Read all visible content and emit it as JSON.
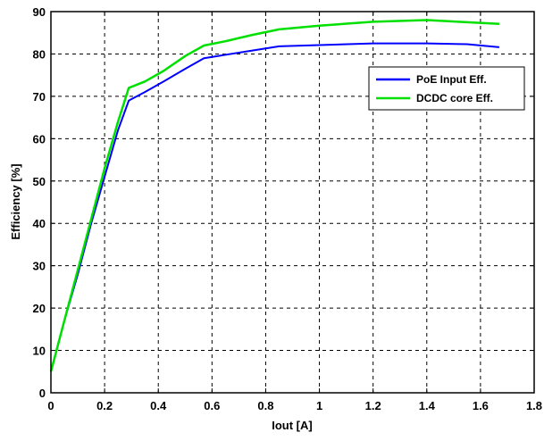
{
  "chart_data": {
    "type": "line",
    "xlabel": "Iout [A]",
    "ylabel": "Efficiency [%]",
    "xlim": [
      0,
      1.8
    ],
    "ylim": [
      0,
      90
    ],
    "xticks": [
      0,
      0.2,
      0.4,
      0.6,
      0.8,
      1,
      1.2,
      1.4,
      1.6,
      1.8
    ],
    "yticks": [
      0,
      10,
      20,
      30,
      40,
      50,
      60,
      70,
      80,
      90
    ],
    "xtick_labels": [
      "0",
      "0.2",
      "0.4",
      "0.6",
      "0.8",
      "1",
      "1.2",
      "1.4",
      "1.6",
      "1.8"
    ],
    "ytick_labels": [
      "0",
      "10",
      "20",
      "30",
      "40",
      "50",
      "60",
      "70",
      "80",
      "90"
    ],
    "grid": true,
    "legend_position": "top-right",
    "series": [
      {
        "name": "PoE Input Eff.",
        "color": "#0000ff",
        "x": [
          0,
          0.05,
          0.1,
          0.15,
          0.2,
          0.25,
          0.29,
          0.35,
          0.42,
          0.5,
          0.57,
          0.65,
          0.75,
          0.85,
          1.0,
          1.2,
          1.4,
          1.55,
          1.67
        ],
        "y": [
          5,
          17,
          28,
          40,
          51,
          62,
          69,
          71,
          73.5,
          76.5,
          79,
          79.8,
          80.8,
          81.8,
          82.1,
          82.5,
          82.5,
          82.3,
          81.6
        ]
      },
      {
        "name": "DCDC core Eff.",
        "color": "#00e000",
        "x": [
          0,
          0.05,
          0.1,
          0.15,
          0.2,
          0.25,
          0.29,
          0.35,
          0.42,
          0.5,
          0.57,
          0.65,
          0.75,
          0.85,
          1.0,
          1.2,
          1.4,
          1.55,
          1.67
        ],
        "y": [
          5,
          17,
          29,
          41,
          53,
          64,
          72,
          73.5,
          76,
          79.5,
          82,
          83,
          84.5,
          85.8,
          86.7,
          87.6,
          88,
          87.5,
          87.1
        ]
      }
    ]
  }
}
